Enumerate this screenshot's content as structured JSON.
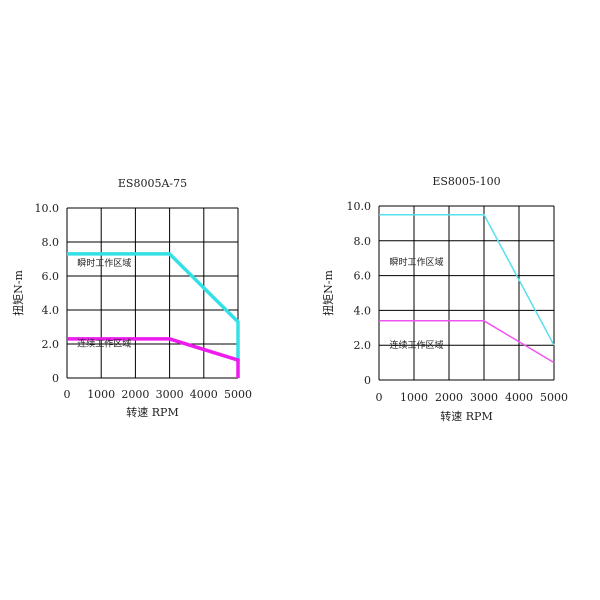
{
  "colors": {
    "peak_left": "#33e0e6",
    "continuous_left": "#ee1aee",
    "peak_right": "#55e0ee",
    "continuous_right": "#ee55ee",
    "grid": "#000000"
  },
  "chart_data": [
    {
      "type": "line",
      "title": "ES8005A-75",
      "xlabel": "转速 RPM",
      "ylabel": "扭矩N-m",
      "xlim": [
        0,
        5000
      ],
      "ylim": [
        0,
        10
      ],
      "x_ticks": [
        0,
        1000,
        2000,
        3000,
        4000,
        5000
      ],
      "x_tick_labels": [
        "0",
        "1000",
        "2000",
        "3000",
        "4000",
        "5000"
      ],
      "y_ticks": [
        0,
        2,
        4,
        6,
        8,
        10
      ],
      "y_tick_labels": [
        "0",
        "2.0",
        "4.0",
        "6.0",
        "8.0",
        "10.0"
      ],
      "grid": true,
      "annotations": [
        {
          "text": "瞬时工作区域",
          "x": 300,
          "y": 6.6
        },
        {
          "text": "连续工作区域",
          "x": 300,
          "y": 1.85
        }
      ],
      "series": [
        {
          "color": "#33e0e6",
          "width": 3.5,
          "points": [
            [
              0,
              7.3
            ],
            [
              3000,
              7.3
            ],
            [
              5000,
              3.3
            ],
            [
              5000,
              1.0
            ]
          ]
        },
        {
          "color": "#ee1aee",
          "width": 3.5,
          "points": [
            [
              0,
              2.3
            ],
            [
              3000,
              2.3
            ],
            [
              5000,
              1.05
            ],
            [
              5000,
              0
            ]
          ]
        }
      ]
    },
    {
      "type": "line",
      "title": "ES8005-100",
      "xlabel": "转速 RPM",
      "ylabel": "扭矩N-m",
      "xlim": [
        0,
        5000
      ],
      "ylim": [
        0,
        10
      ],
      "x_ticks": [
        0,
        1000,
        2000,
        3000,
        4000,
        5000
      ],
      "x_tick_labels": [
        "0",
        "1000",
        "2000",
        "3000",
        "4000",
        "5000"
      ],
      "y_ticks": [
        0,
        2,
        4,
        6,
        8,
        10
      ],
      "y_tick_labels": [
        "0",
        "2.0",
        "4.0",
        "6.0",
        "8.0",
        "10.0"
      ],
      "grid": true,
      "annotations": [
        {
          "text": "瞬时工作区域",
          "x": 300,
          "y": 6.6
        },
        {
          "text": "连续工作区域",
          "x": 300,
          "y": 1.85
        }
      ],
      "series": [
        {
          "color": "#55e0ee",
          "width": 1.5,
          "points": [
            [
              0,
              9.5
            ],
            [
              3000,
              9.5
            ],
            [
              5000,
              2.0
            ]
          ]
        },
        {
          "color": "#ee55ee",
          "width": 1.5,
          "points": [
            [
              0,
              3.4
            ],
            [
              3000,
              3.4
            ],
            [
              5000,
              1.0
            ]
          ]
        }
      ]
    }
  ]
}
